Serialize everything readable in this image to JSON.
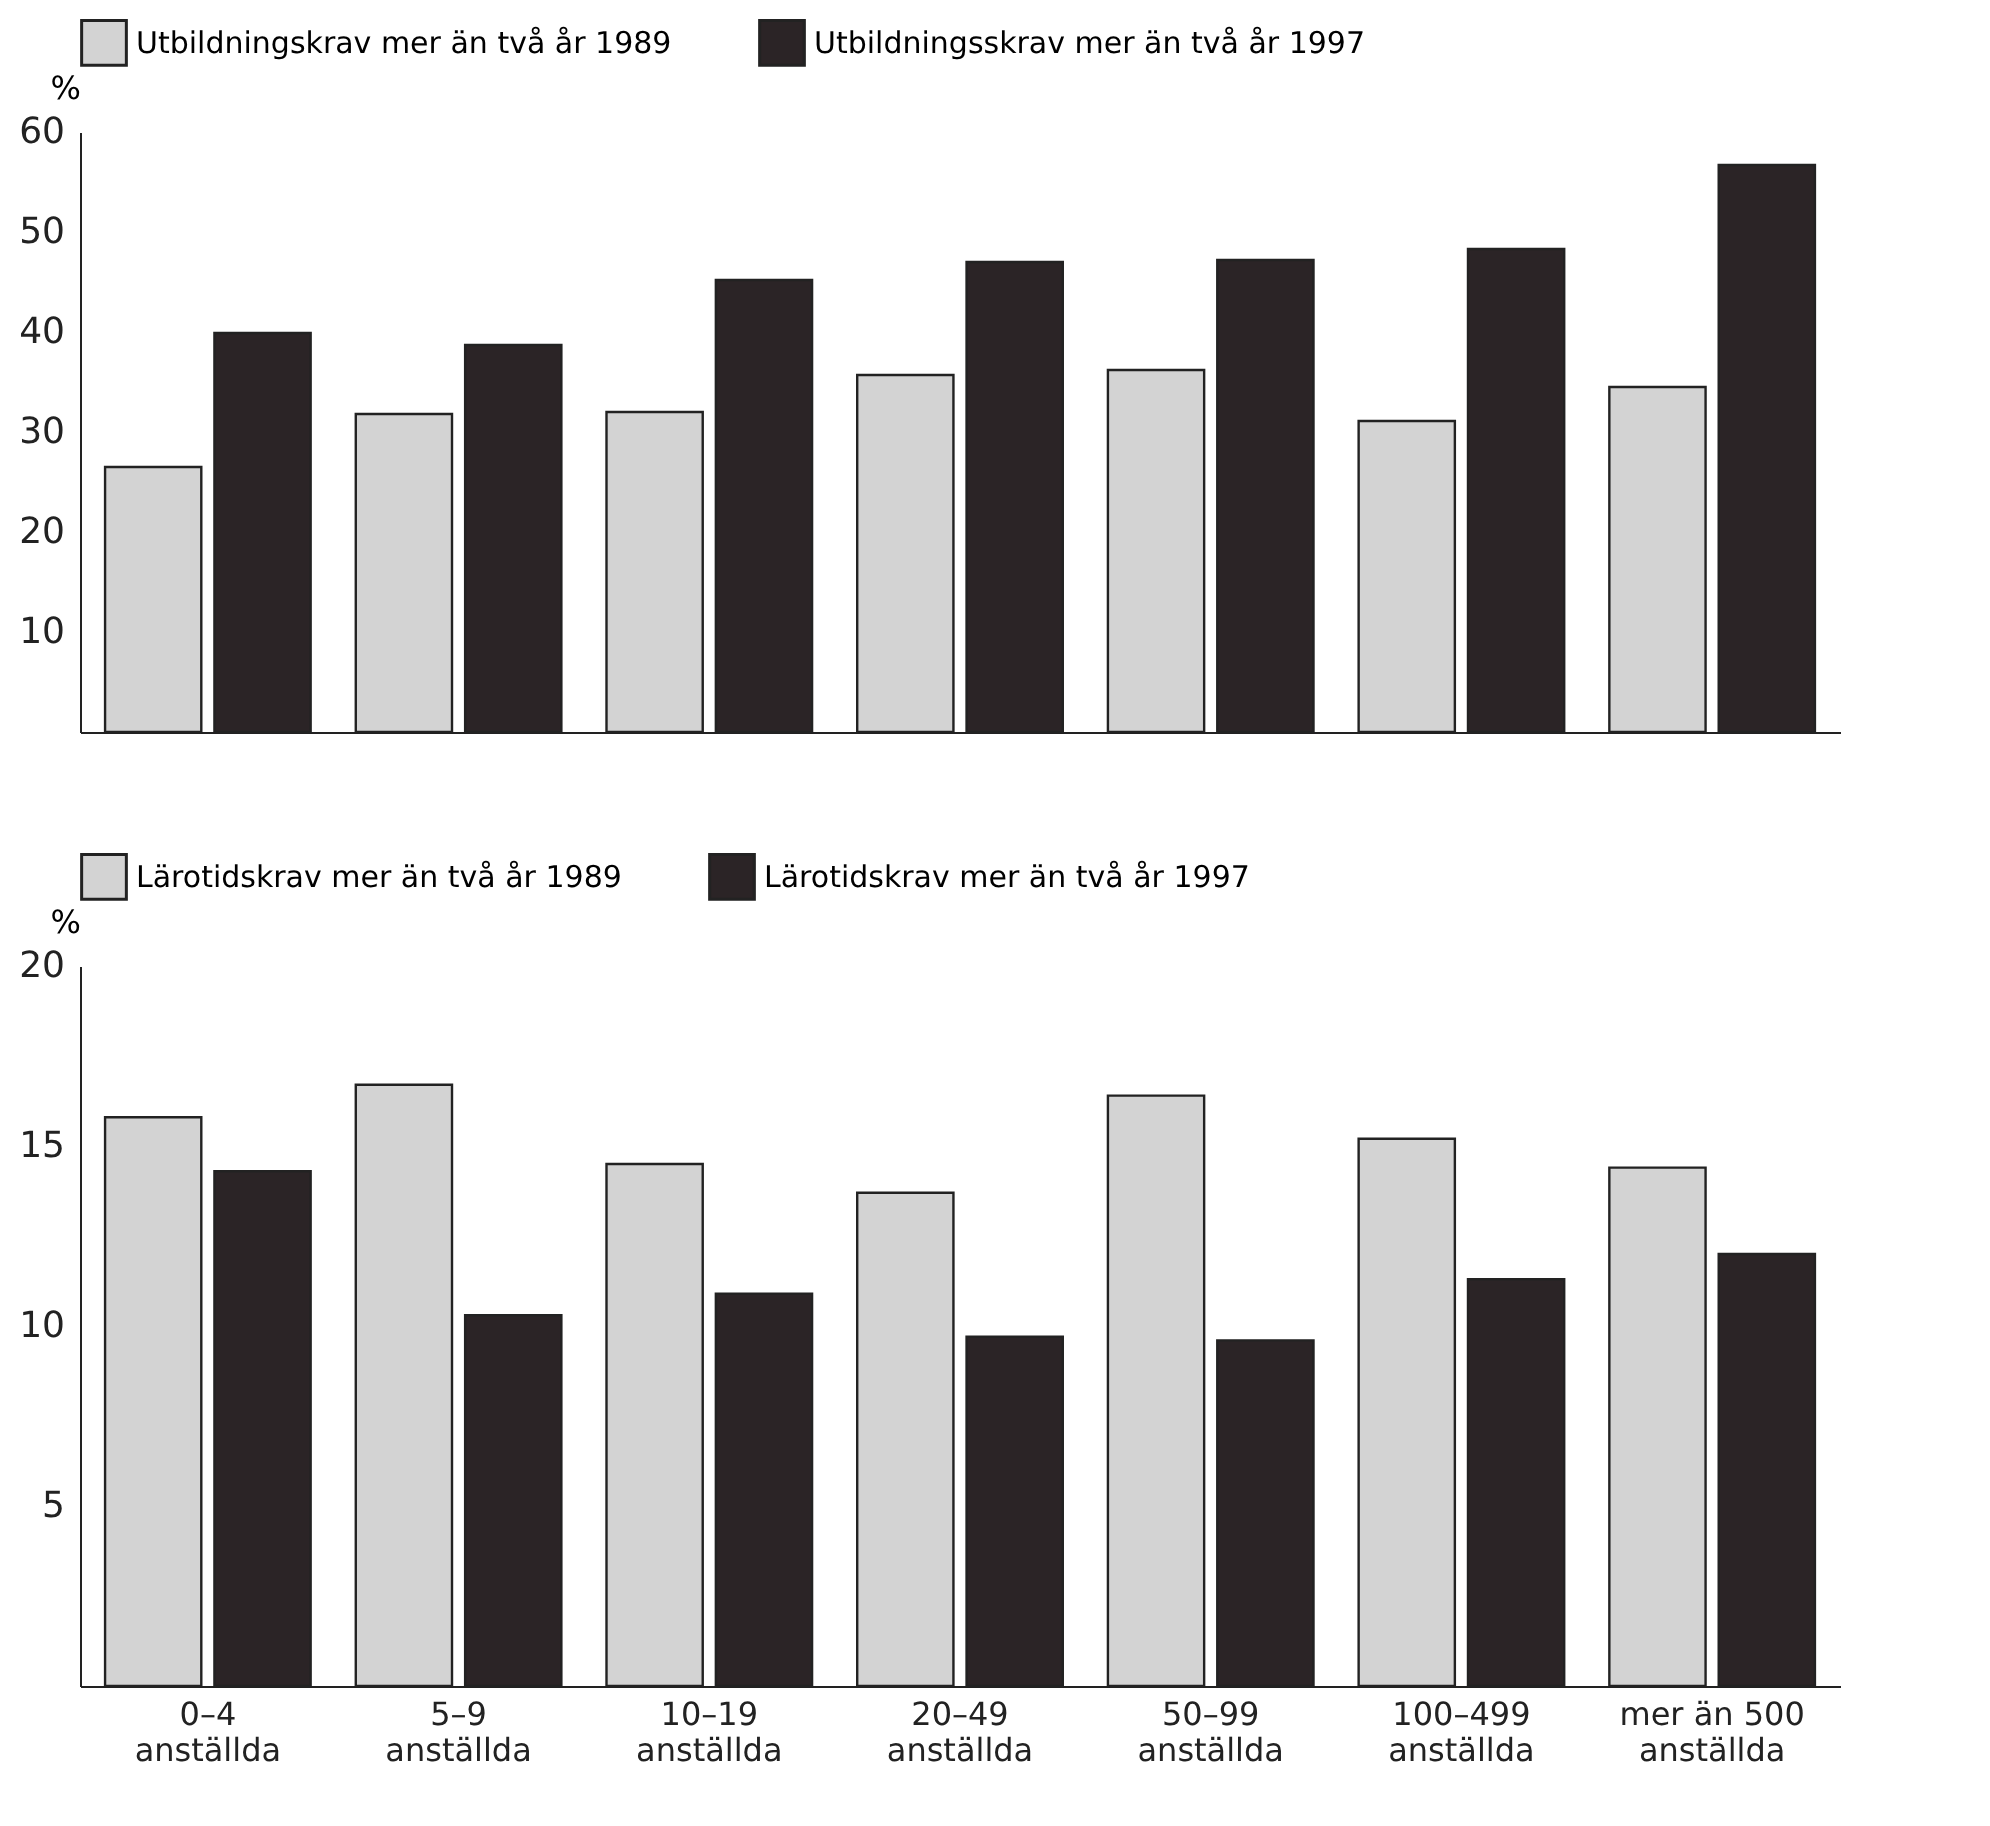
{
  "chart_data": [
    {
      "type": "bar",
      "ylabel": "%",
      "categories": [
        null,
        null,
        null,
        null,
        null,
        null,
        null
      ],
      "series": [
        {
          "name": "Utbildningskrav mer än två år 1989",
          "color": "#d3d3d3",
          "values": [
            26.5,
            31.8,
            32,
            35.7,
            36.2,
            31.1,
            34.5
          ]
        },
        {
          "name": "Utbildningsskrav mer än två år 1997",
          "color": "#2b2426",
          "values": [
            39.9,
            38.7,
            45.2,
            47,
            47.2,
            48.3,
            56.7
          ]
        }
      ],
      "ylim": [
        0,
        60
      ],
      "yticks": [
        10,
        20,
        30,
        40,
        50,
        60
      ],
      "grid": false,
      "legend": "top"
    },
    {
      "type": "bar",
      "ylabel": "%",
      "categories": [
        "0–4 anställda",
        "5–9 anställda",
        "10–19 anställda",
        "20–49 anställda",
        "50–99 anställda",
        "100–499 anställda",
        "mer än 500 anställda"
      ],
      "series": [
        {
          "name": "Lärotidskrav mer än två år 1989",
          "color": "#d3d3d3",
          "values": [
            15.8,
            16.7,
            14.5,
            13.7,
            16.4,
            15.2,
            14.4
          ]
        },
        {
          "name": "Lärotidskrav mer än två år 1997",
          "color": "#2b2426",
          "values": [
            14.3,
            10.3,
            10.9,
            9.7,
            9.6,
            11.3,
            12
          ]
        }
      ],
      "ylim": [
        0,
        20
      ],
      "yticks": [
        5,
        10,
        15,
        20
      ],
      "grid": false,
      "legend": "top"
    }
  ]
}
